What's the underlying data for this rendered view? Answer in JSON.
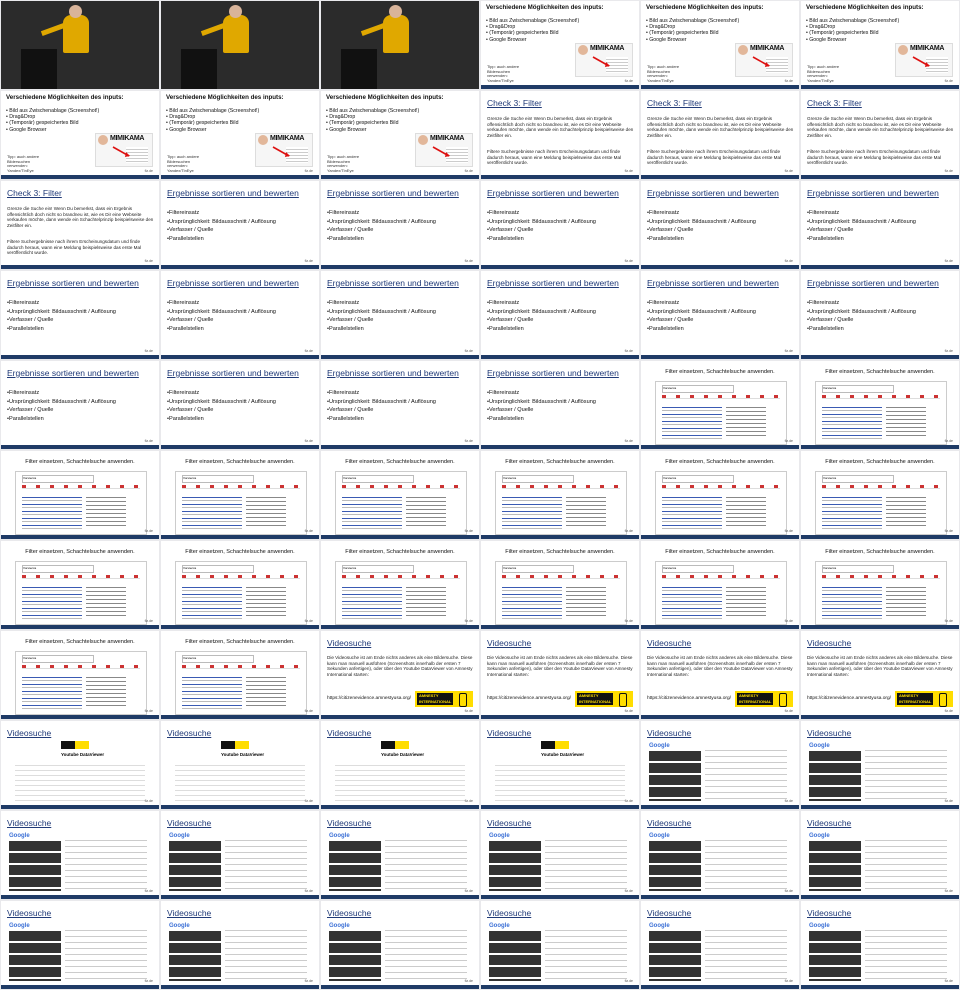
{
  "brand": {
    "footer_label": "fiz.de",
    "colors": {
      "accent": "#1f3b66",
      "title_link": "#203a78",
      "amnesty_yellow": "#ffdd00"
    }
  },
  "slides": {
    "photo": {
      "kind": "speaker-photo"
    },
    "inputs": {
      "title": "Verschiedene Möglichkeiten des inputs:",
      "bullets": [
        "Bild aus Zwischenablage (Screenshot!)",
        "Drag&Drop",
        "(Temporär) gespeichertes Bild",
        "Google Browser"
      ],
      "tip": "Tipp: auch andere Bildersuchen verwenden: Yandex/TinEye",
      "image_brand": "MIMIKAMA"
    },
    "filter": {
      "title": "Check 3: Filter",
      "para1": "Grenze die Suche ein! Wenn Du bemerkst, dass ein Ergebnis offensichtlich doch nicht so brandneu ist, wie es Dir eine Webseite verkaufen möchte, dann wende ein Schachtelprinzip beispielsweise den Zeitfilter ein.",
      "para2": "Filtere Suchergebnisse nach ihrem Erscheinungsdatum und finde dadurch heraus, wann eine Meldung beispielsweise das erste Mal veröffentlicht wurde."
    },
    "sort": {
      "title": "Ergebnisse sortieren und bewerten",
      "bullets": [
        "Filtereinsatz",
        "Ursprünglichkeit: Bildausschnitt / Auflösung",
        "Verfasser / Quelle",
        "Parallelstellen"
      ]
    },
    "box": {
      "caption": "Filter einsetzen, Schachtelsuche anwenden.",
      "search_term": "Vorstecca"
    },
    "video_intro": {
      "title": "Videosuche",
      "para": "Die Videosuche ist am Ende nichts anderes als eine Bildersuche. Diese kann man manuell ausführen (Screenshots innerhalb der ersten 7 Sekunden anfertigen), oder über den Youtube DataViewer von Amnesty International starten:",
      "url": "https://citizenevidence.amnestyusa.org/",
      "logo": "AMNESTY INTERNATIONAL"
    },
    "video_dv": {
      "title": "Videosuche",
      "heading": "Youtube DataViewer"
    },
    "video_google": {
      "title": "Videosuche",
      "search_brand": "Google"
    }
  },
  "grid": [
    "photo",
    "photo",
    "photo",
    "inputs",
    "inputs",
    "inputs",
    "inputs",
    "inputs",
    "inputs",
    "filter",
    "filter",
    "filter",
    "filter",
    "sort",
    "sort",
    "sort",
    "sort",
    "sort",
    "sort",
    "sort",
    "sort",
    "sort",
    "sort",
    "sort",
    "sort",
    "sort",
    "sort",
    "sort",
    "box",
    "box",
    "box",
    "box",
    "box",
    "box",
    "box",
    "box",
    "box",
    "box",
    "box",
    "box",
    "box",
    "box",
    "box",
    "box",
    "video_intro",
    "video_intro",
    "video_intro",
    "video_intro",
    "video_dv",
    "video_dv",
    "video_dv",
    "video_dv",
    "video_google",
    "video_google",
    "video_google",
    "video_google",
    "video_google",
    "video_google",
    "video_google",
    "video_google",
    "video_google",
    "video_google",
    "video_google",
    "video_google",
    "video_google",
    "video_google"
  ]
}
